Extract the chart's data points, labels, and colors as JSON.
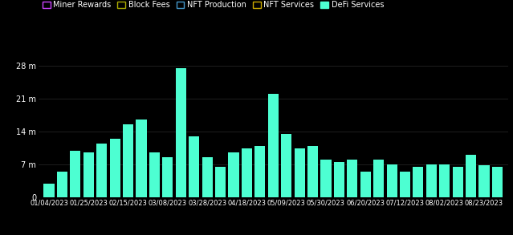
{
  "background_color": "#000000",
  "bar_color": "#4DFFD2",
  "text_color": "#ffffff",
  "grid_color": "#2a2a2a",
  "x_labels": [
    "01/04/2023",
    "01/25/2023",
    "02/15/2023",
    "03/08/2023",
    "03/28/2023",
    "04/18/2023",
    "05/09/2023",
    "05/30/2023",
    "06/20/2023",
    "07/12/2023",
    "08/02/2023",
    "08/23/2023"
  ],
  "bar_values": [
    3.0,
    5.5,
    10.0,
    9.5,
    11.5,
    12.5,
    15.5,
    16.5,
    9.5,
    8.5,
    27.5,
    13.0,
    8.5,
    6.5,
    9.5,
    10.5,
    11.0,
    22.0,
    13.5,
    10.5,
    11.0,
    8.0,
    7.5,
    8.0,
    5.5,
    8.0,
    7.0,
    5.5,
    6.5,
    7.0,
    7.0,
    6.5,
    9.0,
    6.8,
    6.5
  ],
  "yticks": [
    0,
    7,
    14,
    21,
    28
  ],
  "ytick_labels": [
    "0",
    "7 m",
    "14 m",
    "21 m",
    "28 m"
  ],
  "ylim": [
    0,
    30
  ],
  "legend_items": [
    {
      "label": "Miner Rewards",
      "facecolor": "#000000",
      "edgecolor": "#cc44ff"
    },
    {
      "label": "Block Fees",
      "facecolor": "#000000",
      "edgecolor": "#aaaa00"
    },
    {
      "label": "NFT Production",
      "facecolor": "#000000",
      "edgecolor": "#4499cc"
    },
    {
      "label": "NFT Services",
      "facecolor": "#000000",
      "edgecolor": "#ccaa00"
    },
    {
      "label": "DeFi Services",
      "facecolor": "#4DFFD2",
      "edgecolor": "#4DFFD2"
    }
  ]
}
